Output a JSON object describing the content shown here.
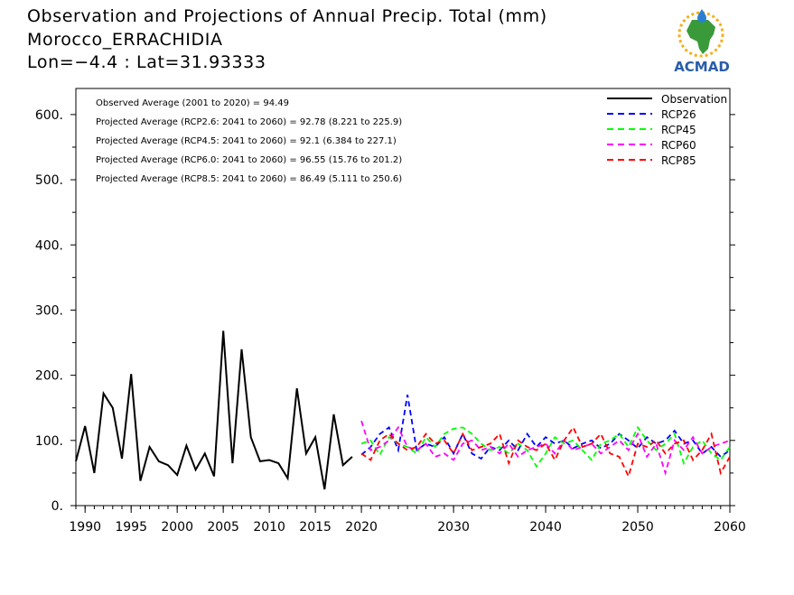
{
  "header": {
    "title": "Observation and Projections of Annual Precip. Total (mm)",
    "station": "Morocco_ERRACHIDIA",
    "coords": "Lon=−4.4 : Lat=31.93333"
  },
  "logo": {
    "text": "ACMAD"
  },
  "annotations": [
    "Observed Average (2001 to 2020) = 94.49",
    "Projected Average (RCP2.6: 2041 to 2060) = 92.78 (8.221 to 225.9)",
    "Projected Average (RCP4.5: 2041 to 2060) = 92.1 (6.384 to 227.1)",
    "Projected Average (RCP6.0: 2041 to 2060) = 96.55 (15.76 to 201.2)",
    "Projected Average (RCP8.5: 2041 to 2060) = 86.49 (5.111 to 250.6)"
  ],
  "chart_data": {
    "type": "line",
    "title": "Observation and Projections of Annual Precip. Total (mm)",
    "xlim": [
      1989,
      2060
    ],
    "ylim": [
      0,
      640
    ],
    "grid": false,
    "legend_position": "top-right",
    "y_ticks": [
      0,
      100,
      200,
      300,
      400,
      500,
      600
    ],
    "y_tick_labels": [
      "0.",
      "100.",
      "200.",
      "300.",
      "400.",
      "500.",
      "600."
    ],
    "x_ticks": [
      1990,
      1995,
      2000,
      2005,
      2010,
      2015,
      2020,
      2030,
      2040,
      2050,
      2060
    ],
    "series": [
      {
        "name": "Observation",
        "color": "#000000",
        "dash": "solid",
        "x": [
          1989,
          1990,
          1991,
          1992,
          1993,
          1994,
          1995,
          1996,
          1997,
          1998,
          1999,
          2000,
          2001,
          2002,
          2003,
          2004,
          2005,
          2006,
          2007,
          2008,
          2009,
          2010,
          2011,
          2012,
          2013,
          2014,
          2015,
          2016,
          2017,
          2018,
          2019
        ],
        "values": [
          68,
          122,
          50,
          172,
          150,
          72,
          202,
          38,
          90,
          68,
          62,
          47,
          92,
          55,
          80,
          45,
          268,
          65,
          240,
          105,
          68,
          70,
          65,
          42,
          180,
          80,
          105,
          25,
          140,
          62,
          75
        ]
      },
      {
        "name": "RCP26",
        "color": "#0000ff",
        "dash": "dashed",
        "x": [
          2020,
          2021,
          2022,
          2023,
          2024,
          2025,
          2026,
          2027,
          2028,
          2029,
          2030,
          2031,
          2032,
          2033,
          2034,
          2035,
          2036,
          2037,
          2038,
          2039,
          2040,
          2041,
          2042,
          2043,
          2044,
          2045,
          2046,
          2047,
          2048,
          2049,
          2050,
          2051,
          2052,
          2053,
          2054,
          2055,
          2056,
          2057,
          2058,
          2059,
          2060
        ],
        "values": [
          78,
          90,
          110,
          120,
          85,
          170,
          85,
          95,
          90,
          105,
          80,
          110,
          80,
          72,
          90,
          85,
          100,
          85,
          110,
          90,
          105,
          95,
          100,
          88,
          95,
          100,
          88,
          95,
          110,
          100,
          88,
          105,
          95,
          100,
          115,
          95,
          100,
          80,
          90,
          75,
          85
        ]
      },
      {
        "name": "RCP45",
        "color": "#00ff00",
        "dash": "dashed",
        "x": [
          2020,
          2021,
          2022,
          2023,
          2024,
          2025,
          2026,
          2027,
          2028,
          2029,
          2030,
          2031,
          2032,
          2033,
          2034,
          2035,
          2036,
          2037,
          2038,
          2039,
          2040,
          2041,
          2042,
          2043,
          2044,
          2045,
          2046,
          2047,
          2048,
          2049,
          2050,
          2051,
          2052,
          2053,
          2054,
          2055,
          2056,
          2057,
          2058,
          2059,
          2060
        ],
        "values": [
          95,
          100,
          78,
          105,
          95,
          90,
          80,
          105,
          90,
          110,
          118,
          120,
          110,
          95,
          85,
          90,
          80,
          95,
          85,
          60,
          80,
          105,
          95,
          100,
          85,
          70,
          95,
          100,
          110,
          90,
          120,
          100,
          85,
          95,
          110,
          65,
          90,
          100,
          80,
          70,
          90
        ]
      },
      {
        "name": "RCP60",
        "color": "#ff00ff",
        "dash": "dashed",
        "x": [
          2020,
          2021,
          2022,
          2023,
          2024,
          2025,
          2026,
          2027,
          2028,
          2029,
          2030,
          2031,
          2032,
          2033,
          2034,
          2035,
          2036,
          2037,
          2038,
          2039,
          2040,
          2041,
          2042,
          2043,
          2044,
          2045,
          2046,
          2047,
          2048,
          2049,
          2050,
          2051,
          2052,
          2053,
          2054,
          2055,
          2056,
          2057,
          2058,
          2059,
          2060
        ],
        "values": [
          130,
          85,
          90,
          100,
          120,
          90,
          85,
          95,
          75,
          80,
          70,
          95,
          100,
          85,
          90,
          80,
          95,
          75,
          85,
          90,
          95,
          80,
          100,
          85,
          90,
          95,
          80,
          90,
          100,
          85,
          110,
          75,
          95,
          50,
          100,
          85,
          105,
          80,
          90,
          95,
          100
        ]
      },
      {
        "name": "RCP85",
        "color": "#ff0000",
        "dash": "dashed",
        "x": [
          2020,
          2021,
          2022,
          2023,
          2024,
          2025,
          2026,
          2027,
          2028,
          2029,
          2030,
          2031,
          2032,
          2033,
          2034,
          2035,
          2036,
          2037,
          2038,
          2039,
          2040,
          2041,
          2042,
          2043,
          2044,
          2045,
          2046,
          2047,
          2048,
          2049,
          2050,
          2051,
          2052,
          2053,
          2054,
          2055,
          2056,
          2057,
          2058,
          2059,
          2060
        ],
        "values": [
          80,
          70,
          100,
          110,
          95,
          85,
          90,
          110,
          95,
          100,
          80,
          110,
          85,
          90,
          95,
          110,
          65,
          100,
          90,
          85,
          95,
          70,
          100,
          120,
          90,
          95,
          110,
          80,
          75,
          45,
          95,
          90,
          100,
          80,
          95,
          100,
          70,
          85,
          110,
          50,
          75
        ]
      }
    ]
  }
}
